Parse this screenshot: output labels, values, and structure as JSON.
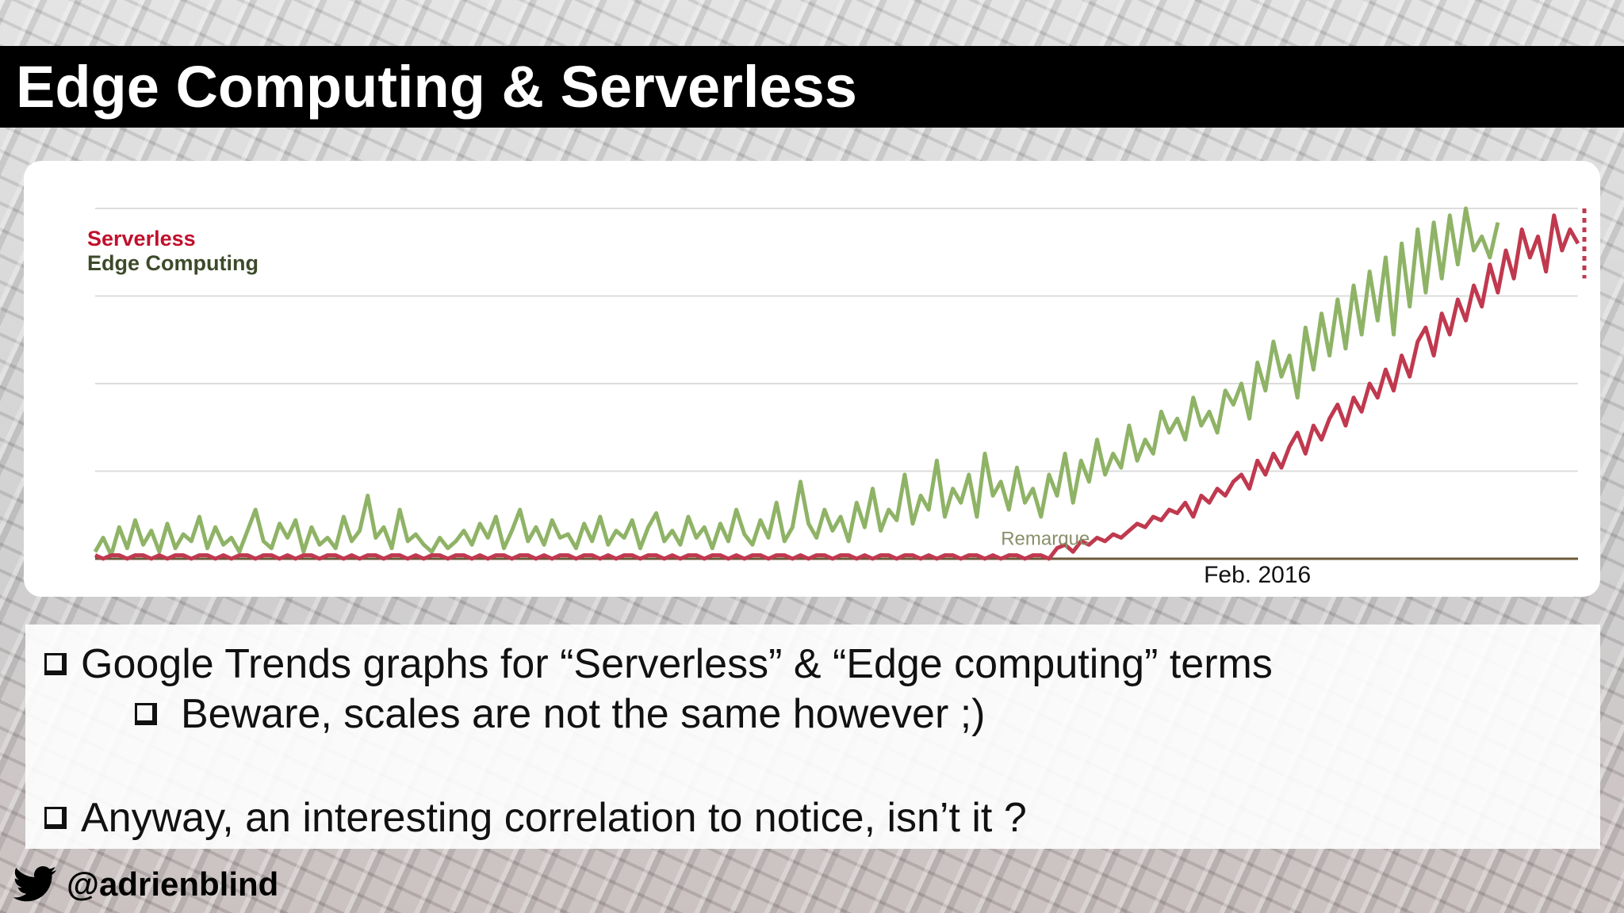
{
  "slide": {
    "title": "Edge Computing & Serverless",
    "bullets": [
      "Google Trends graphs for “Serverless” & “Edge computing” terms",
      "Beware, scales are not the same however ;)",
      "Anyway, an interesting correlation to notice, isn’t it ?"
    ],
    "twitter_handle": "@adrienblind",
    "icons": {
      "bullet": "checkbox-bullet-icon",
      "twitter": "twitter-bird-icon"
    },
    "colors": {
      "title_bg": "#000000",
      "serverless": "#c0394f",
      "edge_computing": "#8fb366"
    }
  },
  "chart_data": {
    "type": "line",
    "xlabel": "",
    "ylabel": "",
    "annotation": "Remarque",
    "x_tick_label": "Feb. 2016",
    "x_tick_index": 145,
    "ylim": [
      0,
      100
    ],
    "grid": true,
    "legend": "top-left",
    "series": [
      {
        "name": "Serverless",
        "color": "#c0394f",
        "values": [
          1,
          0,
          1,
          1,
          0,
          1,
          1,
          0,
          1,
          0,
          1,
          1,
          0,
          1,
          1,
          0,
          1,
          0,
          1,
          1,
          0,
          1,
          1,
          0,
          1,
          0,
          1,
          1,
          0,
          1,
          1,
          0,
          1,
          0,
          1,
          1,
          0,
          1,
          1,
          0,
          1,
          0,
          1,
          1,
          0,
          1,
          1,
          0,
          1,
          0,
          1,
          1,
          0,
          1,
          1,
          0,
          1,
          0,
          1,
          1,
          0,
          1,
          1,
          0,
          1,
          0,
          1,
          1,
          0,
          1,
          1,
          0,
          1,
          0,
          1,
          1,
          0,
          1,
          1,
          0,
          1,
          0,
          1,
          1,
          0,
          1,
          1,
          0,
          1,
          0,
          1,
          1,
          0,
          1,
          1,
          0,
          1,
          0,
          1,
          1,
          0,
          1,
          1,
          0,
          1,
          0,
          1,
          1,
          0,
          1,
          1,
          0,
          1,
          0,
          1,
          1,
          0,
          1,
          1,
          0,
          3,
          4,
          2,
          5,
          4,
          6,
          5,
          7,
          6,
          8,
          10,
          9,
          12,
          11,
          14,
          13,
          16,
          12,
          18,
          16,
          20,
          18,
          22,
          24,
          20,
          28,
          24,
          30,
          26,
          32,
          36,
          30,
          38,
          34,
          40,
          44,
          38,
          46,
          42,
          50,
          46,
          54,
          48,
          58,
          52,
          62,
          66,
          58,
          70,
          64,
          74,
          68,
          78,
          72,
          84,
          76,
          88,
          80,
          94,
          86,
          92,
          82,
          98,
          88,
          94,
          90
        ]
      },
      {
        "name": "Edge Computing",
        "color": "#8fb366",
        "values": [
          2,
          6,
          1,
          9,
          3,
          11,
          4,
          8,
          2,
          10,
          3,
          7,
          5,
          12,
          3,
          9,
          4,
          6,
          2,
          8,
          14,
          5,
          3,
          10,
          6,
          11,
          2,
          9,
          4,
          6,
          3,
          12,
          5,
          8,
          18,
          6,
          9,
          3,
          14,
          5,
          7,
          4,
          2,
          6,
          3,
          5,
          8,
          4,
          10,
          6,
          12,
          3,
          8,
          14,
          5,
          9,
          4,
          11,
          6,
          7,
          3,
          10,
          5,
          12,
          4,
          8,
          6,
          11,
          3,
          9,
          13,
          5,
          8,
          4,
          12,
          6,
          9,
          3,
          10,
          5,
          14,
          7,
          4,
          11,
          6,
          16,
          5,
          9,
          22,
          10,
          6,
          14,
          8,
          12,
          5,
          16,
          9,
          20,
          8,
          14,
          11,
          24,
          10,
          18,
          14,
          28,
          12,
          20,
          16,
          24,
          12,
          30,
          18,
          22,
          14,
          26,
          16,
          20,
          12,
          24,
          18,
          30,
          16,
          28,
          22,
          34,
          24,
          30,
          26,
          38,
          28,
          34,
          30,
          42,
          36,
          40,
          34,
          46,
          38,
          42,
          36,
          48,
          44,
          50,
          40,
          56,
          48,
          62,
          52,
          58,
          46,
          66,
          54,
          70,
          58,
          74,
          60,
          78,
          64,
          82,
          68,
          86,
          64,
          90,
          72,
          94,
          76,
          96,
          80,
          98,
          84,
          100,
          88,
          92,
          86,
          96
        ]
      }
    ]
  }
}
